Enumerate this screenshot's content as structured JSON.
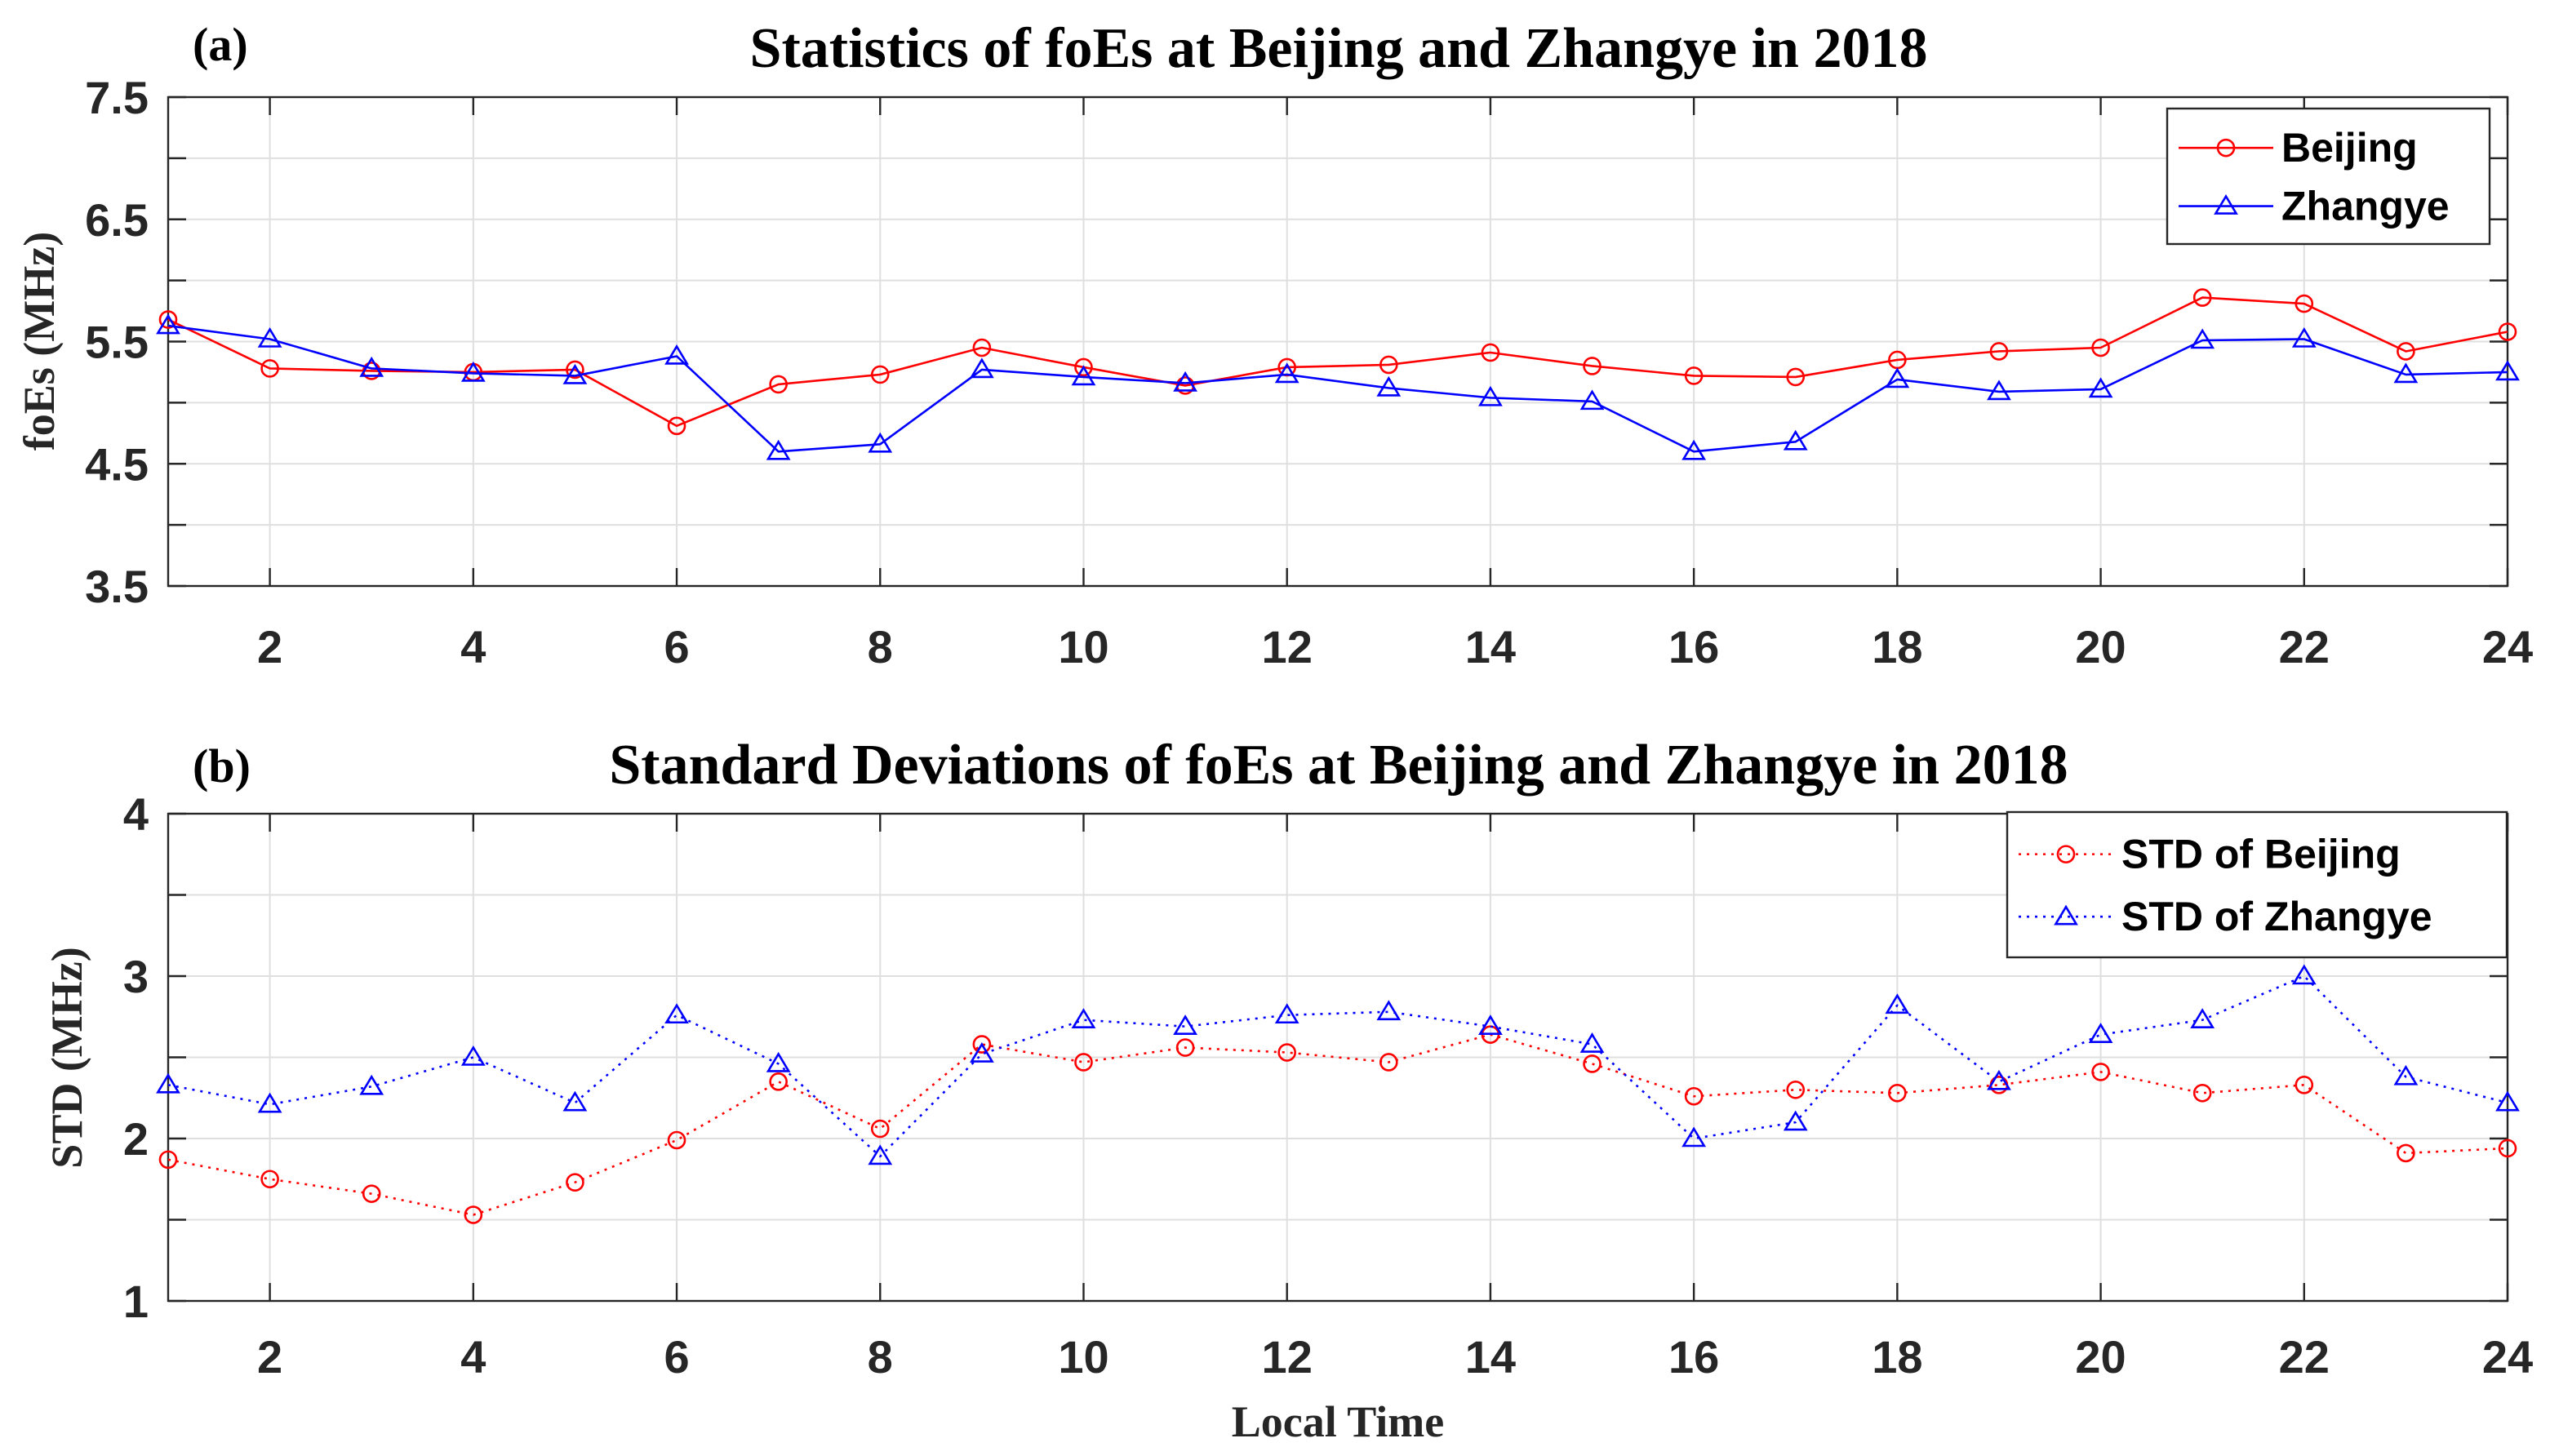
{
  "chart_data": [
    {
      "type": "line",
      "panel_label": "(a)",
      "title": "Statistics of foEs at Beijing and Zhangye in 2018",
      "xlabel": "",
      "ylabel": "foEs (MHz)",
      "xlim": [
        1,
        24
      ],
      "ylim": [
        3.5,
        7.5
      ],
      "grid": true,
      "legend_position": "top-right",
      "x": [
        1,
        2,
        3,
        4,
        5,
        6,
        7,
        8,
        9,
        10,
        11,
        12,
        13,
        14,
        15,
        16,
        17,
        18,
        19,
        20,
        21,
        22,
        23,
        24
      ],
      "x_ticks": [
        2,
        4,
        6,
        8,
        10,
        12,
        14,
        16,
        18,
        20,
        22,
        24
      ],
      "y_ticks": [
        3.5,
        4.5,
        5.5,
        6.5,
        7.5
      ],
      "y_tick_labels": [
        "3.5",
        "4.5",
        "5.5",
        "6.5",
        "7.5"
      ],
      "series": [
        {
          "name": "Beijing",
          "color": "#ff0000",
          "marker": "circle",
          "line_style": "solid",
          "values": [
            5.68,
            5.28,
            5.26,
            5.25,
            5.27,
            4.81,
            5.15,
            5.23,
            5.45,
            5.29,
            5.14,
            5.29,
            5.31,
            5.41,
            5.3,
            5.22,
            5.21,
            5.35,
            5.42,
            5.45,
            5.86,
            5.81,
            5.42,
            5.58
          ]
        },
        {
          "name": "Zhangye",
          "color": "#0000ff",
          "marker": "triangle",
          "line_style": "solid",
          "values": [
            5.63,
            5.52,
            5.28,
            5.24,
            5.22,
            5.38,
            4.6,
            4.66,
            5.27,
            5.21,
            5.16,
            5.23,
            5.12,
            5.04,
            5.01,
            4.6,
            4.68,
            5.19,
            5.09,
            5.11,
            5.51,
            5.52,
            5.23,
            5.25
          ]
        }
      ]
    },
    {
      "type": "line",
      "panel_label": "(b)",
      "title": "Standard Deviations of foEs at Beijing and Zhangye in 2018",
      "xlabel": "Local Time",
      "ylabel": "STD (MHz)",
      "xlim": [
        1,
        24
      ],
      "ylim": [
        1,
        4
      ],
      "grid": true,
      "legend_position": "top-right",
      "x": [
        1,
        2,
        3,
        4,
        5,
        6,
        7,
        8,
        9,
        10,
        11,
        12,
        13,
        14,
        15,
        16,
        17,
        18,
        19,
        20,
        21,
        22,
        23,
        24
      ],
      "x_ticks": [
        2,
        4,
        6,
        8,
        10,
        12,
        14,
        16,
        18,
        20,
        22,
        24
      ],
      "y_ticks": [
        1,
        2,
        3,
        4
      ],
      "y_tick_labels": [
        "1",
        "2",
        "3",
        "4"
      ],
      "series": [
        {
          "name": "STD of Beijing",
          "color": "#ff0000",
          "marker": "circle",
          "line_style": "dotted",
          "values": [
            1.87,
            1.75,
            1.66,
            1.53,
            1.73,
            1.99,
            2.35,
            2.06,
            2.58,
            2.47,
            2.56,
            2.53,
            2.47,
            2.64,
            2.46,
            2.26,
            2.3,
            2.28,
            2.33,
            2.41,
            2.28,
            2.33,
            1.91,
            1.94
          ]
        },
        {
          "name": "STD of Zhangye",
          "color": "#0000ff",
          "marker": "triangle",
          "line_style": "dotted",
          "values": [
            2.33,
            2.21,
            2.32,
            2.5,
            2.22,
            2.76,
            2.46,
            1.89,
            2.52,
            2.73,
            2.69,
            2.76,
            2.78,
            2.69,
            2.58,
            2.0,
            2.1,
            2.82,
            2.35,
            2.64,
            2.73,
            3.0,
            2.38,
            2.22
          ]
        }
      ]
    }
  ]
}
